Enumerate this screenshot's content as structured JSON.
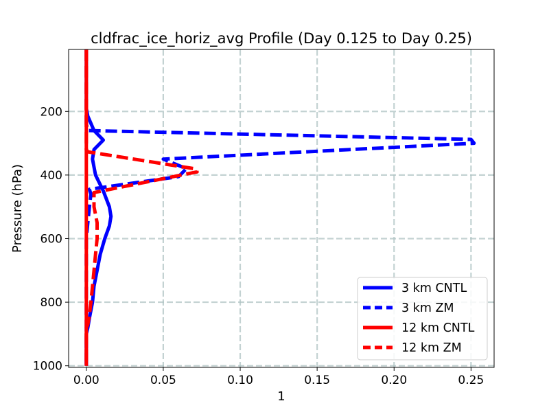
{
  "chart_data": {
    "type": "line",
    "title": "cldfrac_ice_horiz_avg Profile (Day 0.125 to Day 0.25)",
    "xlabel": "1",
    "ylabel": "Pressure (hPa)",
    "xlim": [
      -0.0115,
      0.265
    ],
    "ylim": [
      1005,
      5
    ],
    "y_inverted": true,
    "grid": true,
    "legend_position": "lower right",
    "x_ticks": [
      0.0,
      0.05,
      0.1,
      0.15,
      0.2,
      0.25
    ],
    "x_tick_labels": [
      "0.00",
      "0.05",
      "0.10",
      "0.15",
      "0.20",
      "0.25"
    ],
    "y_ticks": [
      200,
      400,
      600,
      800,
      1000
    ],
    "y_tick_labels": [
      "200",
      "400",
      "600",
      "800",
      "1000"
    ],
    "series": [
      {
        "name": "3 km CNTL",
        "color": "#0000ff",
        "style": "solid",
        "x": [
          0,
          0,
          0.001,
          0.005,
          0.011,
          0.005,
          0.004,
          0.006,
          0.011,
          0.015,
          0.016,
          0.015,
          0.012,
          0.009,
          0.007,
          0.005,
          0.004,
          0.002,
          0.001,
          0,
          0,
          0
        ],
        "y": [
          5,
          190,
          215,
          260,
          290,
          320,
          350,
          400,
          450,
          500,
          530,
          560,
          600,
          650,
          700,
          750,
          800,
          850,
          880,
          900,
          950,
          1000
        ]
      },
      {
        "name": "3 km ZM",
        "color": "#0000ff",
        "style": "dashed",
        "x": [
          0,
          0,
          0.001,
          0.25,
          0.252,
          0.05,
          0.065,
          0.06,
          0.002,
          0.003,
          0.002,
          0.001,
          0,
          0,
          0,
          0,
          0
        ],
        "y": [
          5,
          240,
          260,
          288,
          300,
          350,
          380,
          405,
          445,
          460,
          500,
          550,
          600,
          700,
          800,
          900,
          1000
        ]
      },
      {
        "name": "12 km CNTL",
        "color": "#ff0000",
        "style": "solid",
        "x": [
          0,
          0
        ],
        "y": [
          5,
          1000
        ]
      },
      {
        "name": "12 km ZM",
        "color": "#ff0000",
        "style": "dashed",
        "x": [
          0,
          0,
          0.001,
          0.07,
          0.072,
          0.005,
          0.005,
          0.007,
          0.007,
          0.006,
          0.005,
          0.004,
          0.003,
          0.002,
          0.001,
          0,
          0,
          0
        ],
        "y": [
          5,
          320,
          327,
          380,
          390,
          455,
          500,
          550,
          600,
          650,
          700,
          750,
          800,
          840,
          870,
          880,
          950,
          1000
        ]
      }
    ]
  }
}
